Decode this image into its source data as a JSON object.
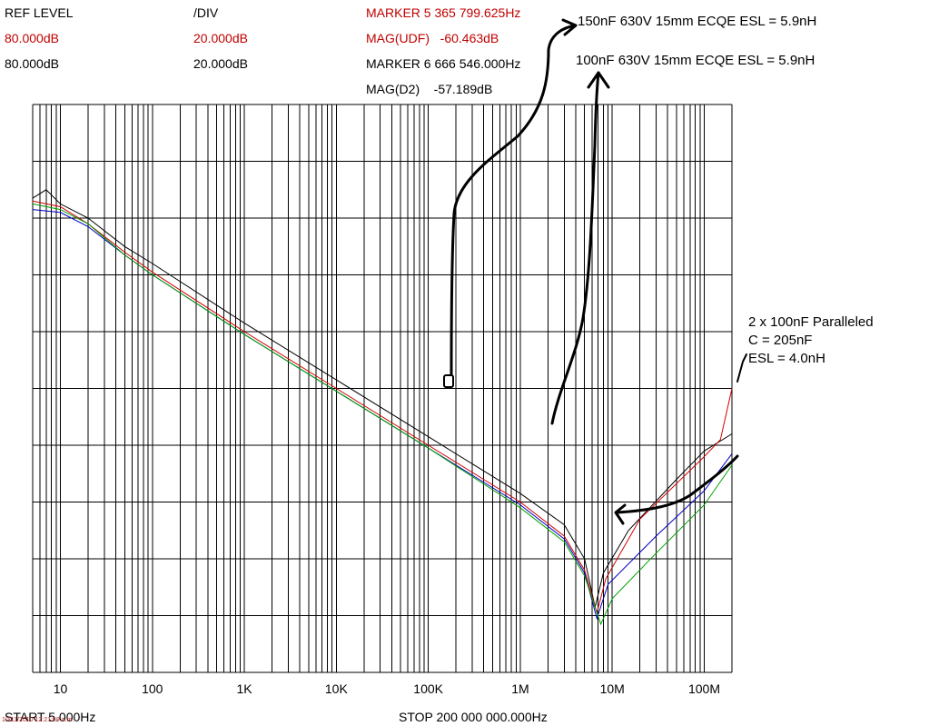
{
  "header": {
    "ref_level_label": "REF LEVEL",
    "div_label": "/DIV",
    "ref_level_1": "80.000dB",
    "div_1": "20.000dB",
    "ref_level_2": "80.000dB",
    "div_2": "20.000dB",
    "marker5": "MARKER 5 365 799.625Hz",
    "mag_udf": "MAG(UDF)   -60.463dB",
    "marker6": "MARKER 6 666 546.000Hz",
    "mag_d2": "MAG(D2)    -57.189dB"
  },
  "annotations": {
    "cap150": "150nF 630V 15mm ECQE ESL = 5.9nH",
    "cap100": "100nF 630V 15mm ECQE ESL = 5.9nH",
    "parallel_line1": "2 x 100nF Paralleled",
    "parallel_line2": "C = 205nF",
    "parallel_line3": "ESL = 4.0nH"
  },
  "footer": {
    "start": "START 5.000Hz",
    "stop": "STOP 200 000 000.000Hz",
    "timestamp": "10/11/2010 12:21:59 a.m."
  },
  "colors": {
    "red_text": "#c00000",
    "black_trace": "#000000",
    "red_trace": "#d00000",
    "blue_trace": "#0000c0",
    "green_trace": "#00a000",
    "grid": "#000000"
  },
  "chart_data": {
    "type": "line",
    "xscale": "log",
    "xlim": [
      5,
      200000000
    ],
    "ylim": [
      -120,
      80
    ],
    "ylabel": "",
    "xlabel": "",
    "x_tick_labels": [
      "10",
      "100",
      "1K",
      "10K",
      "100K",
      "1M",
      "10M",
      "100M"
    ],
    "x_tick_values": [
      10,
      100,
      1000,
      10000,
      100000,
      1000000,
      10000000,
      100000000
    ],
    "grid": true,
    "series": [
      {
        "color": "#000000",
        "points": [
          [
            5,
            47
          ],
          [
            7,
            50
          ],
          [
            10,
            45
          ],
          [
            20,
            40
          ],
          [
            50,
            30
          ],
          [
            100,
            24
          ],
          [
            1000,
            3
          ],
          [
            10000,
            -17
          ],
          [
            100000,
            -37
          ],
          [
            1000000,
            -57
          ],
          [
            3000000,
            -68
          ],
          [
            5000000,
            -80
          ],
          [
            6500000,
            -97
          ],
          [
            8000000,
            -85
          ],
          [
            15000000,
            -70
          ],
          [
            50000000,
            -52
          ],
          [
            100000000,
            -42
          ],
          [
            200000000,
            -36
          ]
        ]
      },
      {
        "color": "#d00000",
        "points": [
          [
            5,
            46
          ],
          [
            10,
            44
          ],
          [
            20,
            38
          ],
          [
            50,
            28
          ],
          [
            100,
            21
          ],
          [
            1000,
            0
          ],
          [
            10000,
            -20
          ],
          [
            100000,
            -40
          ],
          [
            1000000,
            -60
          ],
          [
            3000000,
            -72
          ],
          [
            5000000,
            -84
          ],
          [
            6800000,
            -99
          ],
          [
            8500000,
            -87
          ],
          [
            20000000,
            -66
          ],
          [
            100000000,
            -44
          ],
          [
            150000000,
            -38
          ],
          [
            200000000,
            -20
          ]
        ]
      },
      {
        "color": "#0000c0",
        "points": [
          [
            5,
            43
          ],
          [
            10,
            42
          ],
          [
            20,
            37
          ],
          [
            50,
            27
          ],
          [
            100,
            20
          ],
          [
            1000,
            -1
          ],
          [
            10000,
            -21
          ],
          [
            100000,
            -41
          ],
          [
            1000000,
            -61
          ],
          [
            3000000,
            -73
          ],
          [
            5000000,
            -85
          ],
          [
            6800000,
            -101
          ],
          [
            9000000,
            -89
          ],
          [
            30000000,
            -72
          ],
          [
            100000000,
            -56
          ],
          [
            200000000,
            -43
          ]
        ]
      },
      {
        "color": "#00a000",
        "points": [
          [
            5,
            45
          ],
          [
            10,
            43
          ],
          [
            20,
            38
          ],
          [
            50,
            27
          ],
          [
            100,
            20
          ],
          [
            1000,
            -1
          ],
          [
            10000,
            -21
          ],
          [
            100000,
            -41
          ],
          [
            1000000,
            -62
          ],
          [
            3000000,
            -74
          ],
          [
            5000000,
            -86
          ],
          [
            7500000,
            -103
          ],
          [
            10000000,
            -94
          ],
          [
            30000000,
            -78
          ],
          [
            100000000,
            -61
          ],
          [
            200000000,
            -47
          ]
        ]
      }
    ],
    "marker": {
      "x": 365799.625,
      "y": -60.463
    }
  }
}
